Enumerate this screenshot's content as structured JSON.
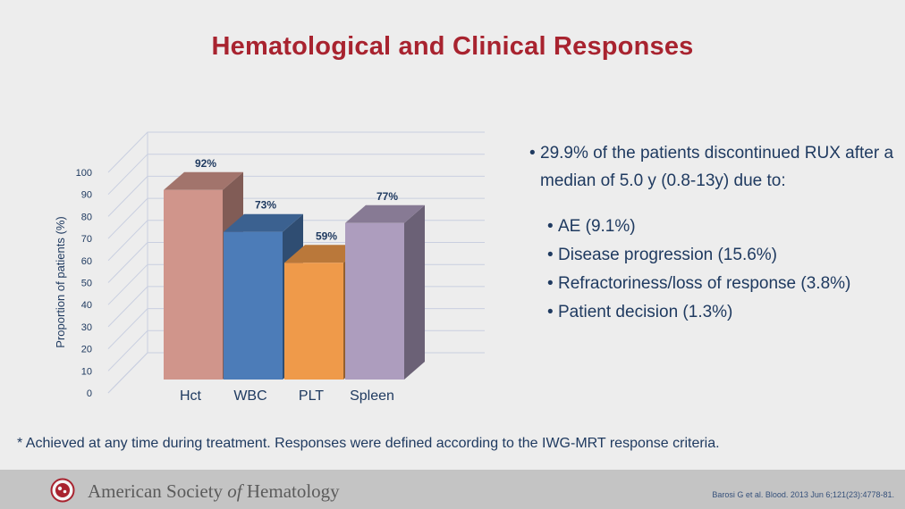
{
  "title": "Hematological and Clinical Responses",
  "chart_data": {
    "type": "bar",
    "ylabel": "Proportion of patients (%)",
    "xlabel": "",
    "ylim": [
      0,
      100
    ],
    "yticks": [
      0,
      10,
      20,
      30,
      40,
      50,
      60,
      70,
      80,
      90,
      100
    ],
    "categories": [
      "Hct",
      "WBC",
      "PLT",
      "Spleen"
    ],
    "values": [
      92,
      73,
      59,
      77
    ],
    "data_labels": [
      "92%",
      "73%",
      "59%",
      "77%"
    ],
    "colors": [
      "#d0958b",
      "#4c7cb8",
      "#ef9a4a",
      "#ad9dbe"
    ],
    "grid": true,
    "three_d": true
  },
  "bullets": {
    "main": "29.9% of the patients discontinued RUX after a median of 5.0 y (0.8-13y) due to:",
    "items": [
      "AE (9.1%)",
      "Disease progression (15.6%)",
      "Refractoriness/loss of response (3.8%)",
      "Patient decision (1.3%)"
    ]
  },
  "footnote": "* Achieved at any time during treatment. Responses were defined according to the IWG-MRT response criteria.",
  "footer": {
    "org_pre": "American Society ",
    "org_of": "of",
    "org_post": " Hematology",
    "citation": "Barosi G et al. Blood. 2013 Jun 6;121(23):4778-81."
  },
  "colors": {
    "title": "#a8232f",
    "text": "#1f3a60",
    "footer_bg": "#c4c4c4"
  }
}
